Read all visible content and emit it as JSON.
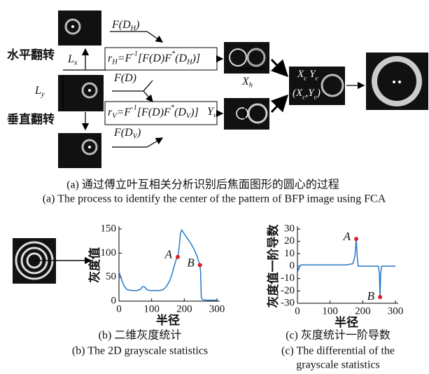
{
  "diagram": {
    "flip_h": "水平翻转",
    "flip_v": "垂直翻转",
    "lx": [
      {
        "text": "L"
      },
      {
        "text": "x",
        "sub": true
      }
    ],
    "ly": [
      {
        "text": "L"
      },
      {
        "text": "y",
        "sub": true
      }
    ],
    "fdh": [
      {
        "text": "F(D"
      },
      {
        "text": "H",
        "sub": true
      },
      {
        "text": ")"
      }
    ],
    "fd": [
      {
        "text": "F(D)"
      }
    ],
    "fdv": [
      {
        "text": "F(D"
      },
      {
        "text": "V",
        "sub": true
      },
      {
        "text": ")"
      }
    ],
    "rh": [
      {
        "text": "r"
      },
      {
        "text": "H",
        "sub": true
      },
      {
        "text": "=F"
      },
      {
        "text": "-1",
        "sup": true
      },
      {
        "text": "[F(D)F"
      },
      {
        "text": "*",
        "sup": true
      },
      {
        "text": "(D"
      },
      {
        "text": "H",
        "sub": true
      },
      {
        "text": ")]"
      }
    ],
    "rv": [
      {
        "text": "r"
      },
      {
        "text": "V",
        "sub": true
      },
      {
        "text": "=F"
      },
      {
        "text": "-1",
        "sup": true
      },
      {
        "text": "[F(D)F"
      },
      {
        "text": "*",
        "sup": true
      },
      {
        "text": "(D"
      },
      {
        "text": "V",
        "sub": true
      },
      {
        "text": ")]"
      }
    ],
    "xh": [
      {
        "text": "X"
      },
      {
        "text": "h",
        "sub": true
      }
    ],
    "yv": [
      {
        "text": "Y"
      },
      {
        "text": "v",
        "sub": true
      }
    ],
    "xcyc": [
      {
        "text": "X"
      },
      {
        "text": "c",
        "sub": true
      },
      {
        "text": " Y"
      },
      {
        "text": "c",
        "sub": true
      }
    ],
    "xcyc_paren": [
      {
        "text": "(X"
      },
      {
        "text": "c",
        "sub": true
      },
      {
        "text": ",Y"
      },
      {
        "text": "c",
        "sub": true
      },
      {
        "text": ")"
      }
    ]
  },
  "captions": {
    "a_zh": "(a) 通过傅立叶互相关分析识别后焦面图形的圆心的过程",
    "a_en": "(a) The process to identify the center of the pattern of BFP image using FCA",
    "b_zh": "(b) 二维灰度统计",
    "b_en": "(b) The 2D grayscale statistics",
    "c_zh": "(c) 灰度统计一阶导数",
    "c_en": [
      "(c) The differential of the",
      "grayscale statistics"
    ]
  },
  "chart_data": [
    {
      "type": "line",
      "x_label": "半径",
      "y_label": "灰度值",
      "color": "#2878c8",
      "x": [
        0,
        3,
        8,
        15,
        25,
        40,
        55,
        65,
        72,
        78,
        85,
        95,
        110,
        125,
        135,
        145,
        155,
        162,
        170,
        176,
        180,
        184,
        188,
        192,
        200,
        210,
        220,
        230,
        240,
        245,
        248,
        250,
        252,
        256,
        270,
        285,
        300
      ],
      "values": [
        62,
        55,
        45,
        32,
        24,
        22,
        22,
        24,
        30,
        30,
        24,
        22,
        22,
        22,
        24,
        30,
        42,
        55,
        75,
        88,
        92,
        110,
        140,
        148,
        140,
        130,
        120,
        108,
        92,
        80,
        75,
        60,
        8,
        3,
        2,
        2,
        2
      ],
      "xlim": [
        0,
        300
      ],
      "xticks": [
        0,
        100,
        200,
        300
      ],
      "ylim": [
        0,
        150
      ],
      "yticks": [
        0,
        50,
        100,
        150
      ],
      "points": [
        {
          "name": "A",
          "x": 180,
          "y": 92,
          "color": "#e02020"
        },
        {
          "name": "B",
          "x": 248,
          "y": 75,
          "color": "#e02020"
        }
      ]
    },
    {
      "type": "line",
      "x_label": "半径",
      "y_label": "灰度值一阶导数",
      "color": "#2878c8",
      "x": [
        0,
        3,
        6,
        10,
        20,
        50,
        100,
        150,
        170,
        176,
        180,
        183,
        186,
        190,
        220,
        248,
        251,
        253,
        255,
        258,
        270,
        300
      ],
      "values": [
        0,
        -3,
        -1,
        1,
        1,
        1,
        1,
        1,
        2,
        8,
        22,
        8,
        0,
        0,
        0,
        0,
        -6,
        -25,
        -6,
        0,
        0,
        0
      ],
      "xlim": [
        0,
        300
      ],
      "xticks": [
        0,
        100,
        200,
        300
      ],
      "ylim": [
        -30,
        30
      ],
      "yticks": [
        -30,
        -20,
        -10,
        0,
        10,
        20,
        30
      ],
      "points": [
        {
          "name": "A",
          "x": 180,
          "y": 22,
          "color": "#e02020"
        },
        {
          "name": "B",
          "x": 253,
          "y": -25,
          "color": "#e02020"
        }
      ]
    }
  ]
}
